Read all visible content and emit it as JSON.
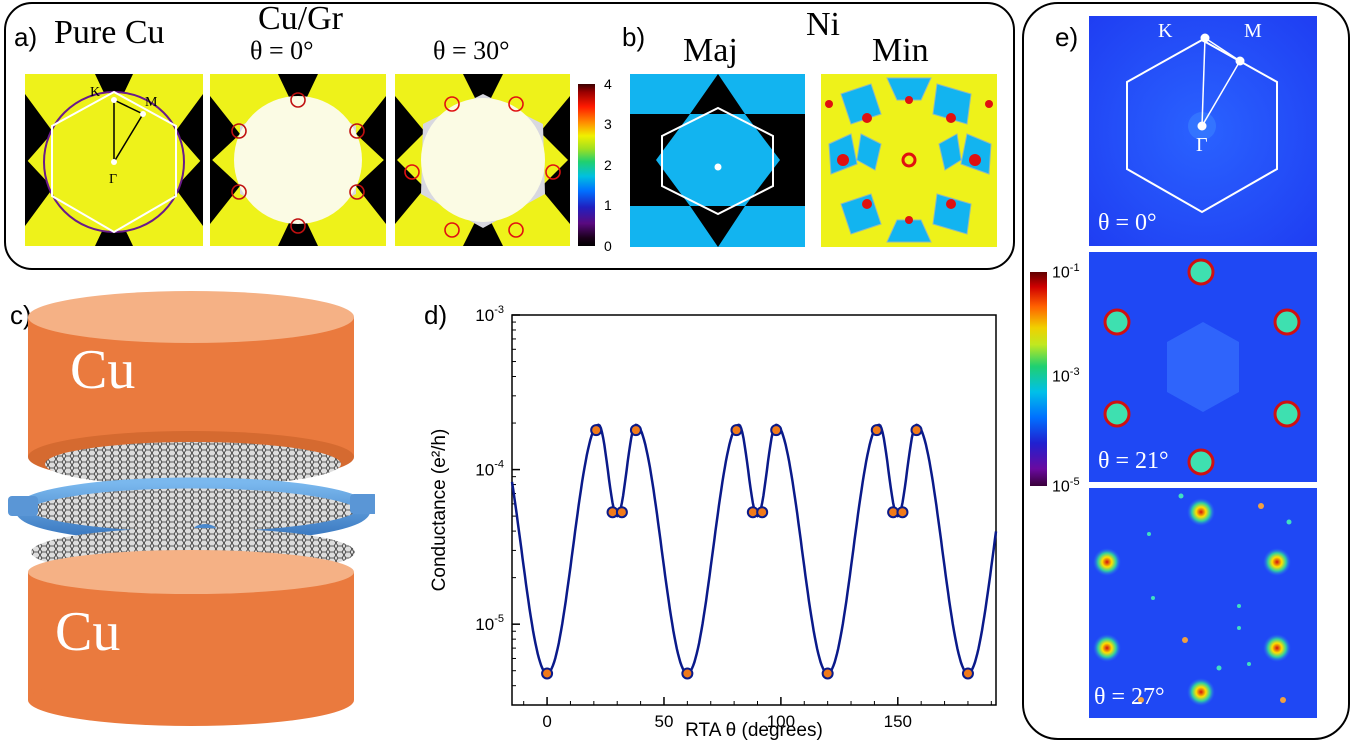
{
  "panel_a": {
    "label": "a)",
    "pure_cu_title": "Pure Cu",
    "cugr_title": "Cu/Gr",
    "theta0": "θ  = 0°",
    "theta30": "θ  = 30°",
    "K": "K",
    "M": "M",
    "Gamma": "Γ"
  },
  "colorbar_a": {
    "ticks": [
      "4",
      "3",
      "2",
      "1",
      "0"
    ]
  },
  "panel_b": {
    "label": "b)",
    "title": "Ni",
    "maj": "Maj",
    "min": "Min"
  },
  "panel_c": {
    "label": "c)",
    "top": "Cu",
    "bottom": "Cu"
  },
  "panel_d": {
    "label": "d)"
  },
  "panel_e": {
    "label": "e)",
    "K": "K",
    "M": "M",
    "Gamma": "Γ",
    "theta0": "θ  = 0°",
    "theta21": "θ  = 21°",
    "theta27": "θ  = 27°",
    "cb_top": "10-1",
    "cb_mid": "10-3",
    "cb_bot": "10-5"
  },
  "chart_data": {
    "type": "line",
    "xlabel": "RTA  θ (degrees)",
    "ylabel": "Conductance (e²/h)",
    "xlim": [
      -15,
      192
    ],
    "ylim": [
      3e-06,
      0.001
    ],
    "yscale": "log",
    "xticks": [
      0,
      50,
      100,
      150
    ],
    "yticks": [
      "10-3",
      "10-4",
      "10-5"
    ],
    "curve_period": 60,
    "points": [
      {
        "x": 0,
        "y": 4.8e-06
      },
      {
        "x": 21,
        "y": 0.00018
      },
      {
        "x": 28,
        "y": 5.3e-05
      },
      {
        "x": 32,
        "y": 5.3e-05
      },
      {
        "x": 38,
        "y": 0.00018
      },
      {
        "x": 60,
        "y": 4.8e-06
      },
      {
        "x": 81,
        "y": 0.00018
      },
      {
        "x": 88,
        "y": 5.3e-05
      },
      {
        "x": 92,
        "y": 5.3e-05
      },
      {
        "x": 98,
        "y": 0.00018
      },
      {
        "x": 120,
        "y": 4.8e-06
      },
      {
        "x": 141,
        "y": 0.00018
      },
      {
        "x": 148,
        "y": 5.3e-05
      },
      {
        "x": 152,
        "y": 5.3e-05
      },
      {
        "x": 158,
        "y": 0.00018
      },
      {
        "x": 180,
        "y": 4.8e-06
      }
    ],
    "colors": {
      "line": "#0a1a8a",
      "marker": "#f07a1a"
    }
  }
}
